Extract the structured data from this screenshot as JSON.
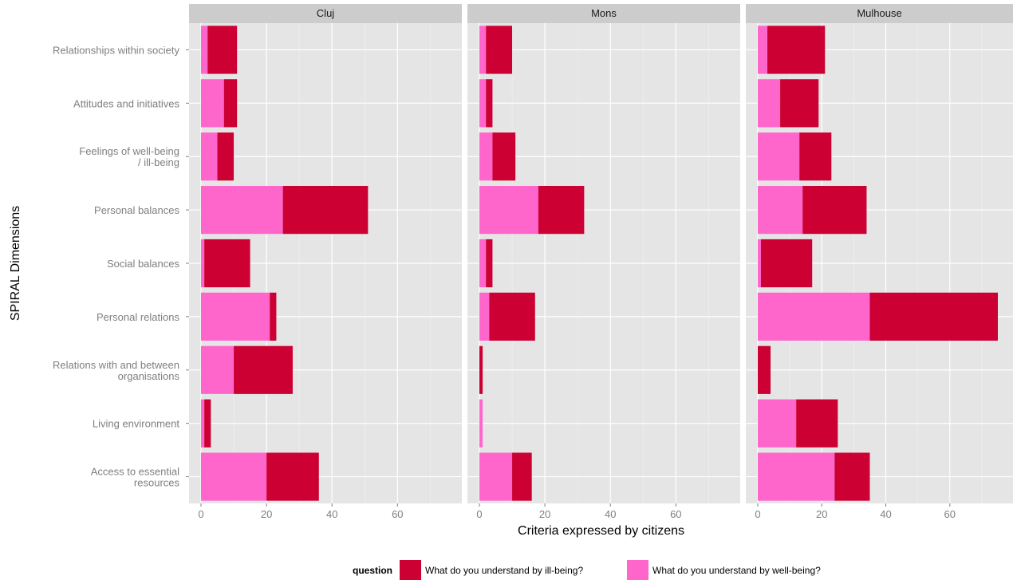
{
  "chart_data": {
    "type": "bar",
    "orientation": "horizontal",
    "stacked": true,
    "xlabel": "Criteria expressed by citizens",
    "ylabel": "SPIRAL Dimensions",
    "xlim": [
      0,
      76
    ],
    "xticks": [
      0,
      20,
      40,
      60
    ],
    "grid": true,
    "legend_position": "bottom",
    "legend_title": "question",
    "categories": [
      "Relationships within society",
      "Attitudes and initiatives",
      "Feelings of well-being\n/ ill-being",
      "Personal balances",
      "Social balances",
      "Personal relations",
      "Relations with and between\norganisations",
      "Living environment",
      "Access to essential\nresources"
    ],
    "series_meta": [
      {
        "name": "What do you understand by ill-being?",
        "color": "#cc0033"
      },
      {
        "name": "What do you understand by well-being?",
        "color": "#ff66cc"
      }
    ],
    "panels": [
      {
        "name": "Cluj",
        "series": [
          {
            "name": "What do you understand by well-being?",
            "values": [
              2,
              7,
              5,
              25,
              1,
              21,
              10,
              1,
              20
            ]
          },
          {
            "name": "What do you understand by ill-being?",
            "values": [
              9,
              4,
              5,
              26,
              14,
              2,
              18,
              2,
              16
            ]
          }
        ]
      },
      {
        "name": "Mons",
        "series": [
          {
            "name": "What do you understand by well-being?",
            "values": [
              2,
              2,
              4,
              18,
              2,
              3,
              0,
              1,
              10
            ]
          },
          {
            "name": "What do you understand by ill-being?",
            "values": [
              8,
              2,
              7,
              14,
              2,
              14,
              1,
              0,
              6
            ]
          }
        ]
      },
      {
        "name": "Mulhouse",
        "series": [
          {
            "name": "What do you understand by well-being?",
            "values": [
              3,
              7,
              13,
              14,
              1,
              35,
              0,
              12,
              24
            ]
          },
          {
            "name": "What do you understand by ill-being?",
            "values": [
              18,
              12,
              10,
              20,
              16,
              40,
              4,
              13,
              11
            ]
          }
        ]
      }
    ]
  }
}
